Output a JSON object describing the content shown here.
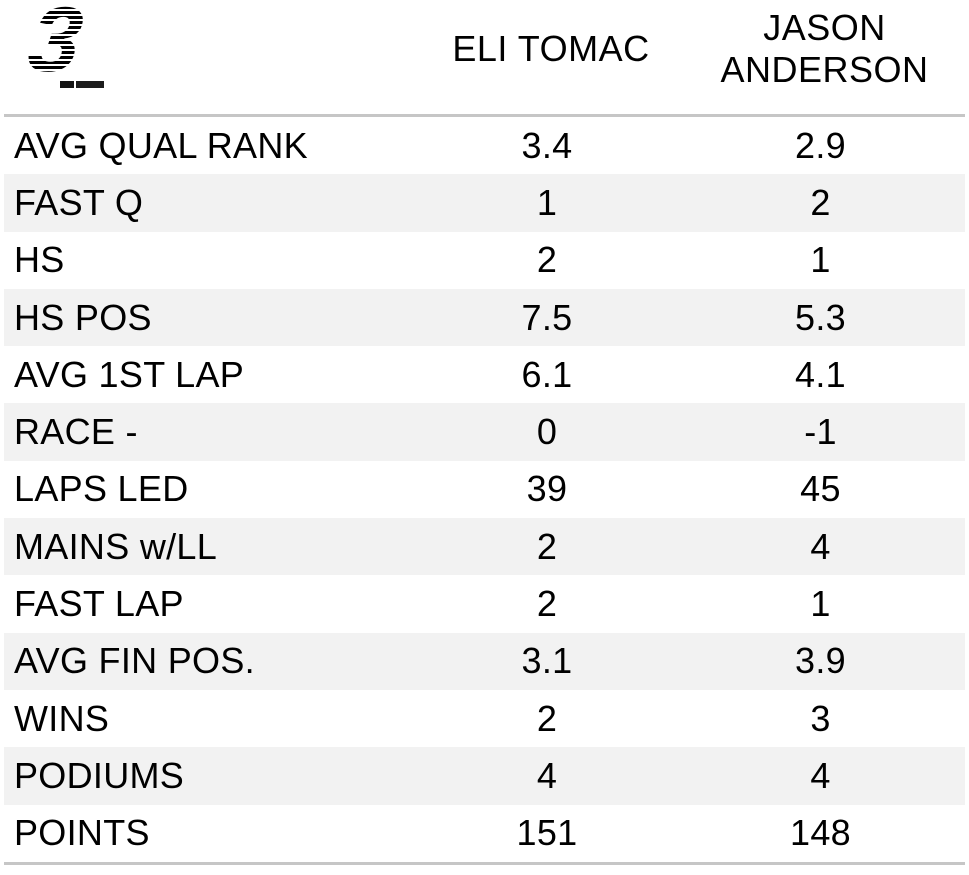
{
  "logo": {
    "glyph": "3"
  },
  "chart_data": {
    "type": "table",
    "columns": [
      "",
      "ELI TOMAC",
      "JASON ANDERSON"
    ],
    "rows": [
      [
        "AVG QUAL RANK",
        "3.4",
        "2.9"
      ],
      [
        "FAST Q",
        "1",
        "2"
      ],
      [
        "HS",
        "2",
        "1"
      ],
      [
        "HS POS",
        "7.5",
        "5.3"
      ],
      [
        "AVG 1ST LAP",
        "6.1",
        "4.1"
      ],
      [
        "RACE -",
        "0",
        "-1"
      ],
      [
        "LAPS LED",
        "39",
        "45"
      ],
      [
        "MAINS w/LL",
        "2",
        "4"
      ],
      [
        "FAST LAP",
        "2",
        "1"
      ],
      [
        "AVG FIN POS.",
        "3.1",
        "3.9"
      ],
      [
        "WINS",
        "2",
        "3"
      ],
      [
        "PODIUMS",
        "4",
        "4"
      ],
      [
        "POINTS",
        "151",
        "148"
      ]
    ],
    "layout": {
      "row_striping": "alternating",
      "stripe_rows": "even",
      "grid": "horizontal rules top and bottom only"
    }
  },
  "colors": {
    "text": "#000000",
    "row_alt_background": "#f2f2f2",
    "divider": "#c6c6c6",
    "logo": "#000000"
  }
}
